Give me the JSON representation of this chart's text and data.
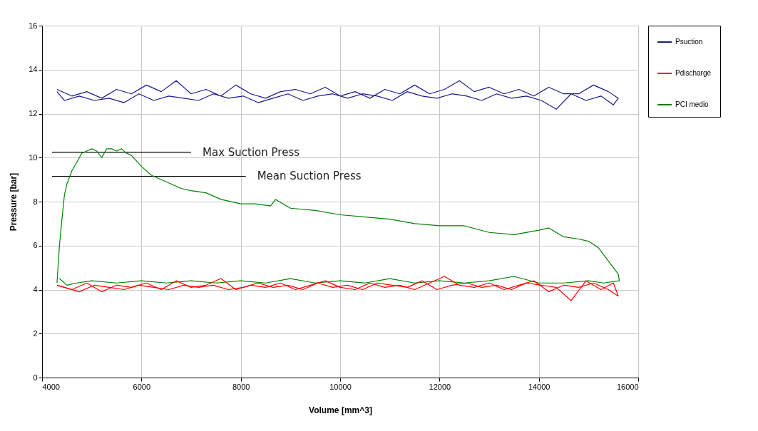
{
  "chart_data": {
    "type": "line",
    "xlabel": "Volume  [mm^3]",
    "ylabel": "Pressure [bar]",
    "xlim": [
      4000,
      16000
    ],
    "xticks": [
      4000,
      6000,
      8000,
      10000,
      12000,
      14000,
      16000
    ],
    "ylim": [
      0,
      16
    ],
    "yticks": [
      0,
      2,
      4,
      6,
      8,
      10,
      12,
      14,
      16
    ],
    "grid": true,
    "legend": "right",
    "marker": "none",
    "line_style": "solid",
    "series": [
      {
        "name": "Psuction",
        "color": "#1a1a8c",
        "x": [
          4300,
          4600,
          4900,
          5200,
          5500,
          5800,
          6100,
          6400,
          6700,
          7000,
          7300,
          7600,
          7900,
          8200,
          8500,
          8800,
          9100,
          9400,
          9700,
          10000,
          10300,
          10600,
          10900,
          11200,
          11500,
          11800,
          12100,
          12400,
          12700,
          13000,
          13300,
          13600,
          13900,
          14200,
          14500,
          14800,
          15100,
          15400,
          15600,
          15500,
          15250,
          14950,
          14650,
          14350,
          14050,
          13750,
          13450,
          13150,
          12850,
          12550,
          12250,
          11950,
          11650,
          11350,
          11050,
          10750,
          10450,
          10150,
          9850,
          9550,
          9250,
          8950,
          8650,
          8350,
          8050,
          7750,
          7450,
          7150,
          6850,
          6550,
          6250,
          5950,
          5650,
          5350,
          5050,
          4750,
          4450,
          4300
        ],
        "values": [
          13.1,
          12.8,
          13.0,
          12.7,
          13.1,
          12.9,
          13.3,
          13.0,
          13.5,
          12.9,
          13.1,
          12.8,
          13.3,
          12.9,
          12.7,
          13.0,
          13.1,
          12.9,
          13.2,
          12.8,
          13.0,
          12.7,
          13.1,
          12.9,
          13.3,
          12.9,
          13.1,
          13.5,
          13.0,
          13.2,
          12.9,
          13.1,
          12.8,
          13.2,
          12.9,
          12.9,
          13.3,
          13.0,
          12.7,
          12.4,
          12.8,
          12.6,
          12.9,
          12.2,
          12.6,
          12.8,
          12.7,
          12.9,
          12.6,
          12.8,
          12.9,
          12.7,
          12.8,
          13.0,
          12.6,
          12.8,
          12.9,
          12.7,
          12.9,
          12.8,
          12.6,
          12.9,
          12.7,
          12.5,
          12.8,
          12.7,
          12.9,
          12.6,
          12.7,
          12.8,
          12.6,
          12.9,
          12.5,
          12.7,
          12.6,
          12.8,
          12.6,
          13.0
        ]
      },
      {
        "name": "Pdischarge",
        "color": "#ff0000",
        "x": [
          4300,
          4600,
          4900,
          5200,
          5500,
          5800,
          6100,
          6400,
          6700,
          7000,
          7300,
          7600,
          7900,
          8200,
          8500,
          8800,
          9100,
          9400,
          9700,
          10000,
          10300,
          10600,
          10900,
          11200,
          11500,
          11800,
          12100,
          12400,
          12700,
          13000,
          13300,
          13600,
          13900,
          14200,
          14500,
          14800,
          15100,
          15400,
          15600
        ],
        "values": [
          4.2,
          4.0,
          4.3,
          3.9,
          4.2,
          4.1,
          4.3,
          4.0,
          4.4,
          4.1,
          4.2,
          4.5,
          4.0,
          4.2,
          4.1,
          4.3,
          4.0,
          4.2,
          4.4,
          4.1,
          4.0,
          4.3,
          4.1,
          4.2,
          4.0,
          4.3,
          4.6,
          4.2,
          4.1,
          4.3,
          4.0,
          4.2,
          4.4,
          3.9,
          4.2,
          4.1,
          4.3,
          4.0,
          3.7
        ]
      },
      {
        "color": "#ff0000",
        "x": [
          15600,
          15500,
          15250,
          14950,
          14650,
          14350,
          14050,
          13750,
          13450,
          13150,
          12850,
          12550,
          12250,
          11950,
          11650,
          11350,
          11050,
          10750,
          10450,
          10150,
          9850,
          9550,
          9250,
          8950,
          8650,
          8350,
          8050,
          7750,
          7450,
          7150,
          6850,
          6550,
          6250,
          5950,
          5650,
          5350,
          5050,
          4750,
          4450,
          4300
        ],
        "values": [
          3.7,
          4.3,
          4.0,
          4.4,
          3.5,
          4.1,
          4.2,
          4.3,
          4.0,
          4.2,
          4.1,
          4.3,
          4.2,
          4.0,
          4.4,
          4.1,
          4.2,
          4.3,
          4.0,
          4.2,
          4.1,
          4.3,
          4.0,
          4.2,
          4.1,
          4.3,
          4.1,
          4.0,
          4.2,
          4.1,
          4.2,
          4.0,
          4.1,
          4.2,
          4.0,
          4.1,
          4.2,
          3.9,
          4.1,
          4.2
        ]
      },
      {
        "name": "PCI medio",
        "color": "#008000",
        "x": [
          4300,
          4320,
          4350,
          4400,
          4450,
          4500,
          4600,
          4700,
          4800,
          4900,
          5000,
          5100,
          5200,
          5300,
          5400,
          5500,
          5600,
          5700,
          5800,
          6000,
          6200,
          6500,
          6800,
          7000,
          7300,
          7600,
          8000,
          8300,
          8600,
          8700,
          9000,
          9500,
          10000,
          10500,
          11000,
          11500,
          12000,
          12500,
          13000,
          13500,
          14000,
          14200,
          14500,
          14800,
          15000,
          15200,
          15400,
          15500,
          15600,
          15620,
          15300,
          15000,
          14500,
          14000,
          13500,
          13000,
          12500,
          12000,
          11500,
          11000,
          10500,
          10000,
          9500,
          9000,
          8500,
          8000,
          7500,
          7000,
          6500,
          6000,
          5500,
          5000,
          4700,
          4500,
          4350
        ],
        "values": [
          4.3,
          5.0,
          6.0,
          7.2,
          8.3,
          8.8,
          9.4,
          9.8,
          10.2,
          10.3,
          10.4,
          10.3,
          10.0,
          10.4,
          10.4,
          10.3,
          10.4,
          10.2,
          10.1,
          9.6,
          9.2,
          8.9,
          8.6,
          8.5,
          8.4,
          8.1,
          7.9,
          7.9,
          7.8,
          8.1,
          7.7,
          7.6,
          7.4,
          7.3,
          7.2,
          7.0,
          6.9,
          6.9,
          6.6,
          6.5,
          6.7,
          6.8,
          6.4,
          6.3,
          6.2,
          5.9,
          5.3,
          5.0,
          4.7,
          4.4,
          4.3,
          4.4,
          4.3,
          4.3,
          4.6,
          4.4,
          4.3,
          4.4,
          4.3,
          4.5,
          4.3,
          4.4,
          4.3,
          4.5,
          4.3,
          4.4,
          4.3,
          4.4,
          4.3,
          4.4,
          4.3,
          4.4,
          4.3,
          4.2,
          4.5
        ]
      },
      {
        "color": "#000000",
        "x": [
          4200,
          7000
        ],
        "values": [
          10.25,
          10.25
        ]
      },
      {
        "color": "#000000",
        "x": [
          4200,
          8100
        ],
        "values": [
          9.15,
          9.15
        ]
      }
    ],
    "annotations": [
      {
        "text": "Max Suction Press",
        "x": 7000,
        "y": 10.25
      },
      {
        "text": "Mean Suction Press",
        "x": 8100,
        "y": 9.15
      }
    ]
  }
}
